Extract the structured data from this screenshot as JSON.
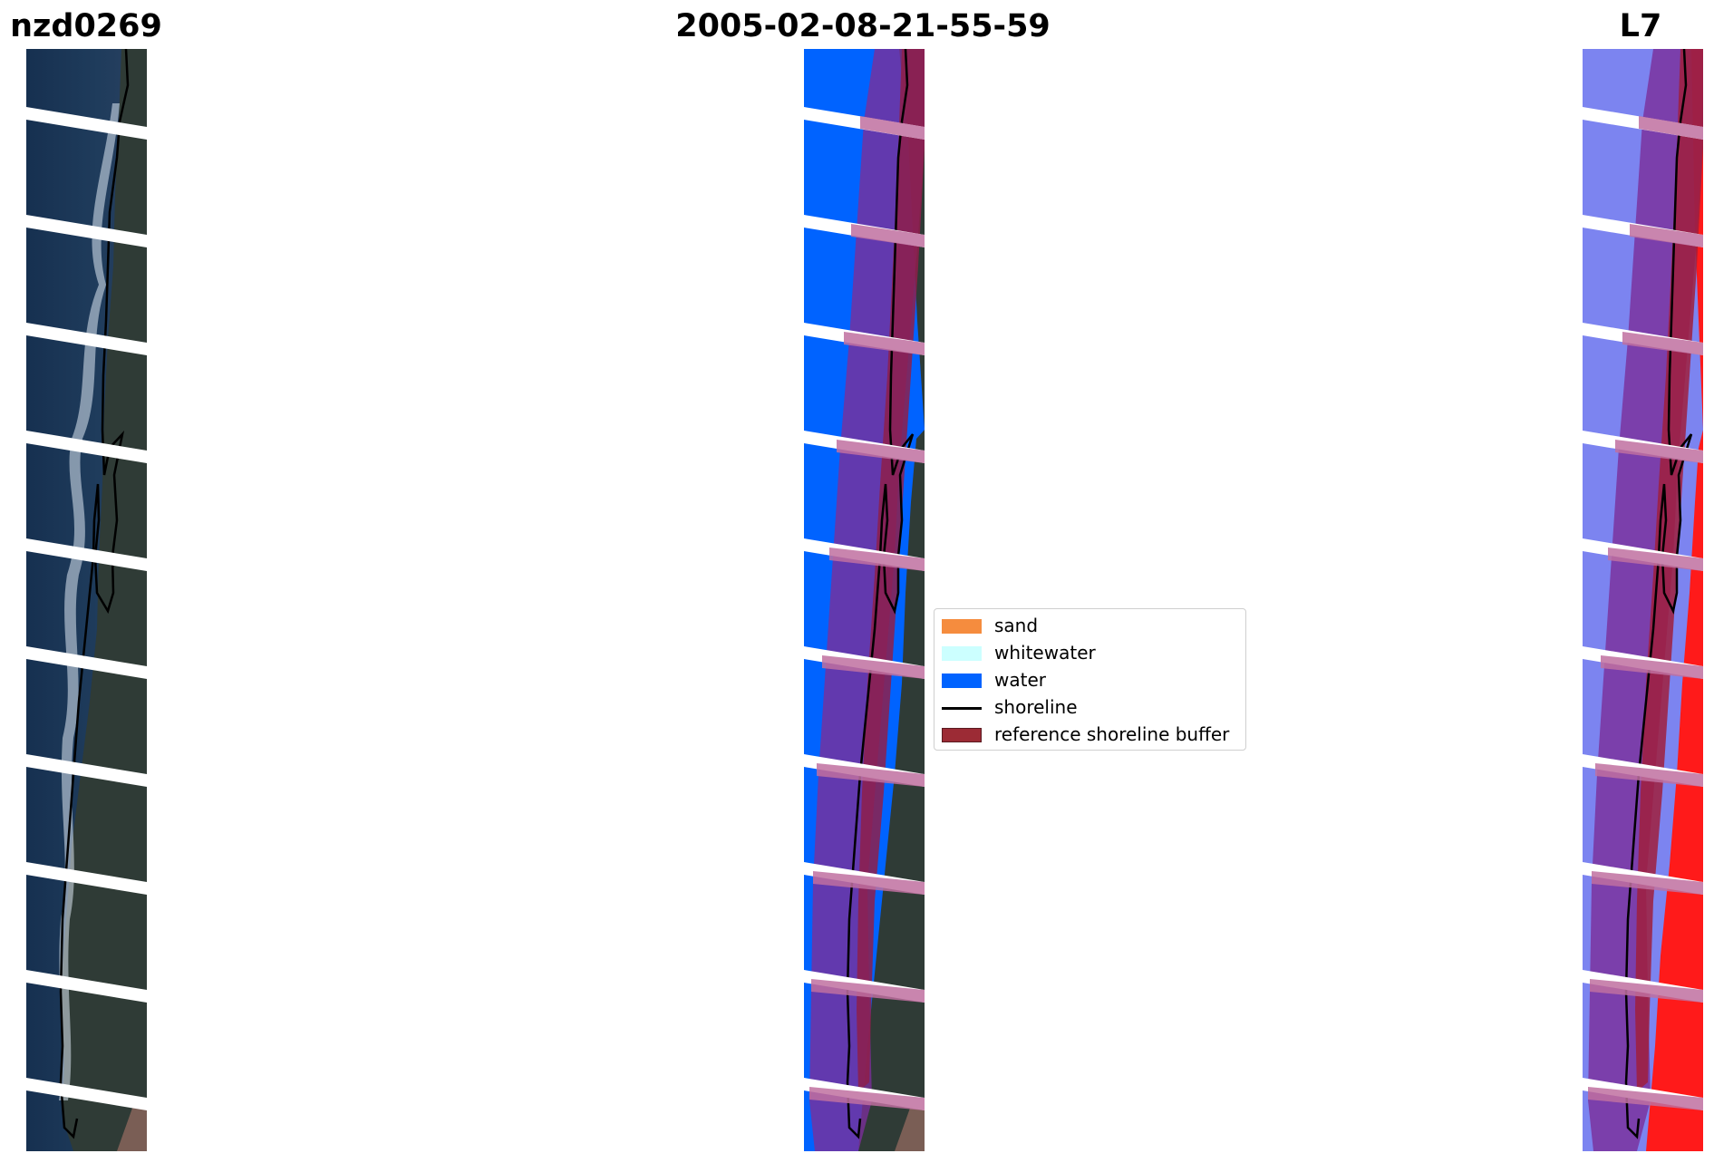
{
  "titles": {
    "left": "nzd0269",
    "center": "2005-02-08-21-55-59",
    "right": "L7"
  },
  "legend": {
    "items": [
      {
        "label": "sand",
        "kind": "patch",
        "color": "#F58C3E"
      },
      {
        "label": "whitewater",
        "kind": "patch",
        "color": "#CCFFFF"
      },
      {
        "label": "water",
        "kind": "patch",
        "color": "#0063FF"
      },
      {
        "label": "shoreline",
        "kind": "line",
        "color": "#000000"
      },
      {
        "label": "reference shoreline buffer",
        "kind": "patch",
        "color": "#9C2B35"
      }
    ]
  },
  "colors": {
    "sea_dark": "#1A3350",
    "land_dark": "#2E3A36",
    "surf": "#DCE6F2",
    "water_class": "#0063FF",
    "buffer_overlay": "#7A2E9A",
    "index_water": "#7C84F0",
    "index_land": "#FF1A1A"
  }
}
